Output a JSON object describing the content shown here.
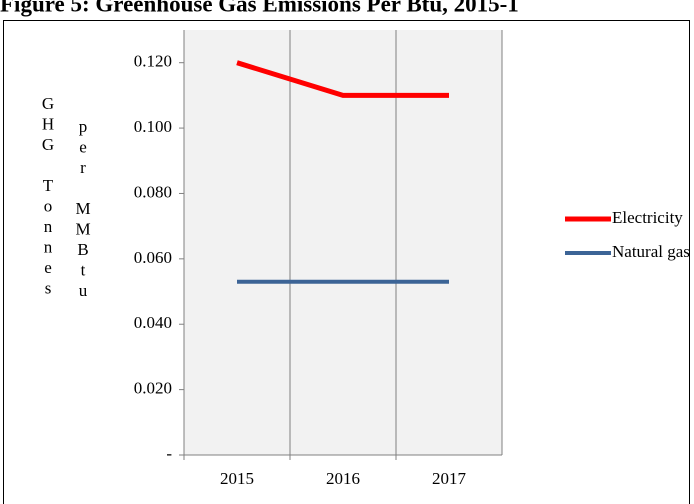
{
  "chart_data": {
    "type": "line",
    "title": "Figure 5: Greenhouse Gas Emissions Per Btu, 2015-1",
    "y_label": [
      "GHG Tonnes",
      "per MMBtu"
    ],
    "categories": [
      "2015",
      "2016",
      "2017"
    ],
    "series": [
      {
        "name": "Electricity",
        "color": "#ff0000",
        "values": [
          0.12,
          0.11,
          0.11
        ]
      },
      {
        "name": "Natural gas",
        "color": "#3c6496",
        "values": [
          0.053,
          0.053,
          0.053
        ]
      }
    ],
    "ylim": [
      0,
      0.13
    ],
    "yticks": [
      {
        "value": 0,
        "label": "-"
      },
      {
        "value": 0.02,
        "label": "0.020"
      },
      {
        "value": 0.04,
        "label": "0.040"
      },
      {
        "value": 0.06,
        "label": "0.060"
      },
      {
        "value": 0.08,
        "label": "0.080"
      },
      {
        "value": 0.1,
        "label": "0.100"
      },
      {
        "value": 0.12,
        "label": "0.120"
      }
    ],
    "legend": "right"
  }
}
